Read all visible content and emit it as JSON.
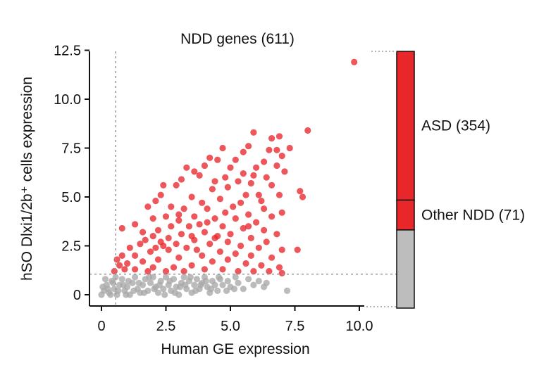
{
  "chart_data": {
    "type": "scatter",
    "title": "NDD genes (611)",
    "xlabel": "Human GE expression",
    "ylabel": "hSO Dlxi1/2b⁺ cells expression",
    "xlim": [
      -0.5,
      10.3
    ],
    "ylim": [
      -0.5,
      12.5
    ],
    "xticks": [
      0,
      2.5,
      5.0,
      7.5,
      10.0
    ],
    "xtick_labels": [
      "0",
      "2.5",
      "5.0",
      "7.5",
      "10.0"
    ],
    "yticks": [
      0,
      2.5,
      5.0,
      7.5,
      10.0,
      12.5
    ],
    "ytick_labels": [
      "0",
      "2.5",
      "5.0",
      "7.5",
      "10.0",
      "12.5"
    ],
    "thresholds": {
      "x": 0.55,
      "y": 1.05
    },
    "colors": {
      "high": "#e8272b",
      "low": "#a8a8a8",
      "bar_low": "#bdbdbd",
      "axis": "#111111",
      "guide": "#9a9a9a"
    },
    "series": [
      {
        "name": "Above threshold",
        "color": "#e8272b",
        "points": [
          [
            9.8,
            11.9
          ],
          [
            8.0,
            8.4
          ],
          [
            6.9,
            8.1
          ],
          [
            6.6,
            8.0
          ],
          [
            5.9,
            8.3
          ],
          [
            7.3,
            7.5
          ],
          [
            7.0,
            7.1
          ],
          [
            6.8,
            7.4
          ],
          [
            5.7,
            7.6
          ],
          [
            4.7,
            7.5
          ],
          [
            5.5,
            7.3
          ],
          [
            5.2,
            6.9
          ],
          [
            4.5,
            6.9
          ],
          [
            4.2,
            7.0
          ],
          [
            6.5,
            7.4
          ],
          [
            6.0,
            6.5
          ],
          [
            5.5,
            6.2
          ],
          [
            5.9,
            6.1
          ],
          [
            6.3,
            6.8
          ],
          [
            7.1,
            6.3
          ],
          [
            6.8,
            6.6
          ],
          [
            4.0,
            6.6
          ],
          [
            3.3,
            6.5
          ],
          [
            3.6,
            6.3
          ],
          [
            4.8,
            6.0
          ],
          [
            5.0,
            6.5
          ],
          [
            5.3,
            5.8
          ],
          [
            3.8,
            6.1
          ],
          [
            4.4,
            5.8
          ],
          [
            6.4,
            6.0
          ],
          [
            6.6,
            5.6
          ],
          [
            4.9,
            5.5
          ],
          [
            5.6,
            5.1
          ],
          [
            5.8,
            5.7
          ],
          [
            4.3,
            5.4
          ],
          [
            3.1,
            5.9
          ],
          [
            2.9,
            5.6
          ],
          [
            3.5,
            5.0
          ],
          [
            2.4,
            5.6
          ],
          [
            2.3,
            5.1
          ],
          [
            2.1,
            4.8
          ],
          [
            1.8,
            4.5
          ],
          [
            3.9,
            4.7
          ],
          [
            4.6,
            4.9
          ],
          [
            5.1,
            4.5
          ],
          [
            6.1,
            5.1
          ],
          [
            6.2,
            4.8
          ],
          [
            6.9,
            5.1
          ],
          [
            7.7,
            5.3
          ],
          [
            7.8,
            5.0
          ],
          [
            5.4,
            4.7
          ],
          [
            3.2,
            4.4
          ],
          [
            4.1,
            4.4
          ],
          [
            2.7,
            4.5
          ],
          [
            6.3,
            4.4
          ],
          [
            7.0,
            4.2
          ],
          [
            6.6,
            4.0
          ],
          [
            5.7,
            4.1
          ],
          [
            4.8,
            4.2
          ],
          [
            3.6,
            4.0
          ],
          [
            3.0,
            4.1
          ],
          [
            2.5,
            4.0
          ],
          [
            2.0,
            3.9
          ],
          [
            1.3,
            3.6
          ],
          [
            0.8,
            3.4
          ],
          [
            4.4,
            3.9
          ],
          [
            5.2,
            3.9
          ],
          [
            6.0,
            3.7
          ],
          [
            3.8,
            3.6
          ],
          [
            3.4,
            3.5
          ],
          [
            2.7,
            3.5
          ],
          [
            2.2,
            3.3
          ],
          [
            1.6,
            3.2
          ],
          [
            4.7,
            3.5
          ],
          [
            5.5,
            3.4
          ],
          [
            6.3,
            3.3
          ],
          [
            6.8,
            3.1
          ],
          [
            4.0,
            3.2
          ],
          [
            3.1,
            3.1
          ],
          [
            2.6,
            2.9
          ],
          [
            2.0,
            3.0
          ],
          [
            1.7,
            2.8
          ],
          [
            4.5,
            3.0
          ],
          [
            5.0,
            3.1
          ],
          [
            5.8,
            2.9
          ],
          [
            6.4,
            2.7
          ],
          [
            3.6,
            2.8
          ],
          [
            2.9,
            2.6
          ],
          [
            2.3,
            2.7
          ],
          [
            1.5,
            2.6
          ],
          [
            1.1,
            2.4
          ],
          [
            4.2,
            2.6
          ],
          [
            4.9,
            2.7
          ],
          [
            5.4,
            2.5
          ],
          [
            6.1,
            2.4
          ],
          [
            7.0,
            2.3
          ],
          [
            7.6,
            2.3
          ],
          [
            3.3,
            2.4
          ],
          [
            2.6,
            2.3
          ],
          [
            1.9,
            2.2
          ],
          [
            1.3,
            2.0
          ],
          [
            0.8,
            2.0
          ],
          [
            0.6,
            1.8
          ],
          [
            4.6,
            2.2
          ],
          [
            5.2,
            2.1
          ],
          [
            5.8,
            2.0
          ],
          [
            6.6,
            1.9
          ],
          [
            3.9,
            2.0
          ],
          [
            3.0,
            1.9
          ],
          [
            2.2,
            1.8
          ],
          [
            1.6,
            1.7
          ],
          [
            1.0,
            1.6
          ],
          [
            0.7,
            1.5
          ],
          [
            4.3,
            1.7
          ],
          [
            4.9,
            1.8
          ],
          [
            5.6,
            1.6
          ],
          [
            6.2,
            1.5
          ],
          [
            6.9,
            1.4
          ],
          [
            3.5,
            1.5
          ],
          [
            2.8,
            1.4
          ],
          [
            2.0,
            1.4
          ],
          [
            1.3,
            1.3
          ],
          [
            0.9,
            1.3
          ],
          [
            0.5,
            1.2
          ],
          [
            4.0,
            1.3
          ],
          [
            4.7,
            1.3
          ],
          [
            5.3,
            1.2
          ],
          [
            5.9,
            1.2
          ],
          [
            6.5,
            1.2
          ],
          [
            7.0,
            1.1
          ],
          [
            3.2,
            1.2
          ],
          [
            2.5,
            1.2
          ],
          [
            1.8,
            1.2
          ],
          [
            3.7,
            2.3
          ],
          [
            4.1,
            3.7
          ],
          [
            2.4,
            2.5
          ],
          [
            3.0,
            3.8
          ],
          [
            5.7,
            3.5
          ],
          [
            4.4,
            2.9
          ],
          [
            2.1,
            2.4
          ],
          [
            3.5,
            3.0
          ]
        ]
      },
      {
        "name": "Below threshold",
        "color": "#a8a8a8",
        "points": [
          [
            0.0,
            0.0
          ],
          [
            0.1,
            0.2
          ],
          [
            0.2,
            0.5
          ],
          [
            0.3,
            0.1
          ],
          [
            0.4,
            0.7
          ],
          [
            0.5,
            0.3
          ],
          [
            0.6,
            0.0
          ],
          [
            0.7,
            0.5
          ],
          [
            0.8,
            0.8
          ],
          [
            0.9,
            0.2
          ],
          [
            1.0,
            0.4
          ],
          [
            1.1,
            0.0
          ],
          [
            1.2,
            0.6
          ],
          [
            1.3,
            0.9
          ],
          [
            1.4,
            0.3
          ],
          [
            1.5,
            0.1
          ],
          [
            1.6,
            0.5
          ],
          [
            1.7,
            0.8
          ],
          [
            1.8,
            0.2
          ],
          [
            1.9,
            0.6
          ],
          [
            2.0,
            0.9
          ],
          [
            2.1,
            0.4
          ],
          [
            2.2,
            0.1
          ],
          [
            2.3,
            0.7
          ],
          [
            2.4,
            0.3
          ],
          [
            2.5,
            0.9
          ],
          [
            2.6,
            0.5
          ],
          [
            2.7,
            0.2
          ],
          [
            2.8,
            0.8
          ],
          [
            2.9,
            0.4
          ],
          [
            3.0,
            0.0
          ],
          [
            3.1,
            0.6
          ],
          [
            3.2,
            0.9
          ],
          [
            3.3,
            0.3
          ],
          [
            3.4,
            0.7
          ],
          [
            3.5,
            0.1
          ],
          [
            3.6,
            0.5
          ],
          [
            3.7,
            0.8
          ],
          [
            3.8,
            0.3
          ],
          [
            3.9,
            0.6
          ],
          [
            4.0,
            0.9
          ],
          [
            4.1,
            0.4
          ],
          [
            4.2,
            0.1
          ],
          [
            4.3,
            0.7
          ],
          [
            4.4,
            0.5
          ],
          [
            4.5,
            0.2
          ],
          [
            4.6,
            0.8
          ],
          [
            4.7,
            0.5
          ],
          [
            4.9,
            0.7
          ],
          [
            5.0,
            0.4
          ],
          [
            5.2,
            0.9
          ],
          [
            5.3,
            0.6
          ],
          [
            5.5,
            0.3
          ],
          [
            5.7,
            0.8
          ],
          [
            5.9,
            0.5
          ],
          [
            6.1,
            0.7
          ],
          [
            6.3,
            0.4
          ],
          [
            6.4,
            0.6
          ],
          [
            7.2,
            0.2
          ],
          [
            0.05,
            0.4
          ],
          [
            0.15,
            0.8
          ],
          [
            0.25,
            0.3
          ],
          [
            0.35,
            0.0
          ],
          [
            0.45,
            0.6
          ],
          [
            0.55,
            0.9
          ],
          [
            0.65,
            0.2
          ],
          [
            0.85,
            0.5
          ],
          [
            0.95,
            0.0
          ],
          [
            1.05,
            0.7
          ],
          [
            1.25,
            0.2
          ],
          [
            1.45,
            0.6
          ],
          [
            1.65,
            0.1
          ],
          [
            1.85,
            0.9
          ],
          [
            2.05,
            0.3
          ],
          [
            2.25,
            0.5
          ],
          [
            2.45,
            0.0
          ],
          [
            2.65,
            0.7
          ],
          [
            2.85,
            0.1
          ],
          [
            3.05,
            0.4
          ],
          [
            3.25,
            0.5
          ],
          [
            3.45,
            0.9
          ],
          [
            3.65,
            0.2
          ],
          [
            3.85,
            0.5
          ],
          [
            4.05,
            0.7
          ],
          [
            4.25,
            0.3
          ],
          [
            4.55,
            0.9
          ],
          [
            4.85,
            0.2
          ],
          [
            5.15,
            0.3
          ]
        ]
      }
    ],
    "composition_bar": {
      "segments": [
        {
          "label": "ASD (354)",
          "count": 354,
          "color": "#e8272b"
        },
        {
          "label": "Other NDD (71)",
          "count": 71,
          "color": "#e8272b"
        },
        {
          "label": "",
          "count": 186,
          "color": "#bdbdbd"
        }
      ]
    }
  }
}
